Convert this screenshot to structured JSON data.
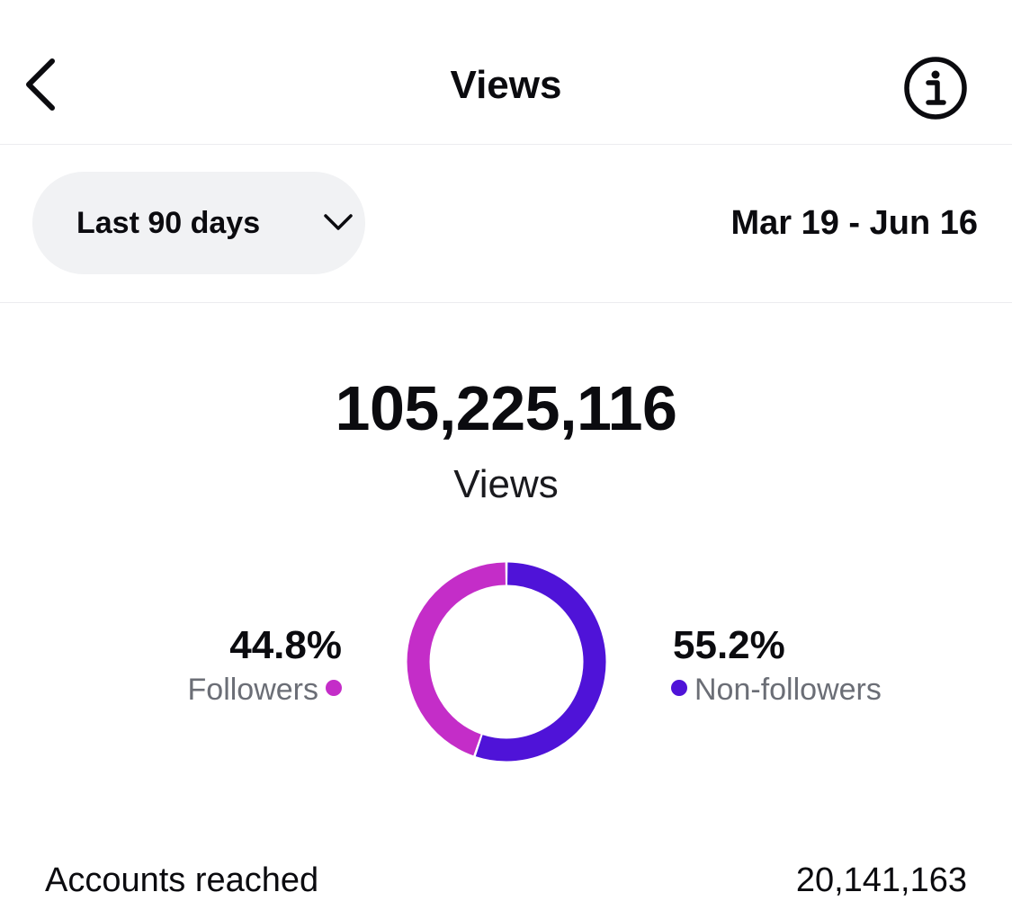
{
  "header": {
    "title": "Views",
    "back_icon": "chevron-left-icon",
    "info_icon": "info-circle-icon"
  },
  "filter": {
    "range_label": "Last 90 days",
    "range_icon": "chevron-down-icon",
    "date_range": "Mar 19 - Jun 16"
  },
  "summary": {
    "total": "105,225,116",
    "label": "Views"
  },
  "chart_data": {
    "type": "pie",
    "variant": "donut",
    "series": [
      {
        "name": "Followers",
        "value": 44.8,
        "label": "44.8%",
        "color": "#c42dc8"
      },
      {
        "name": "Non-followers",
        "value": 55.2,
        "label": "55.2%",
        "color": "#4f13d8"
      }
    ]
  },
  "stats": [
    {
      "label": "Accounts reached",
      "value": "20,141,163"
    }
  ]
}
